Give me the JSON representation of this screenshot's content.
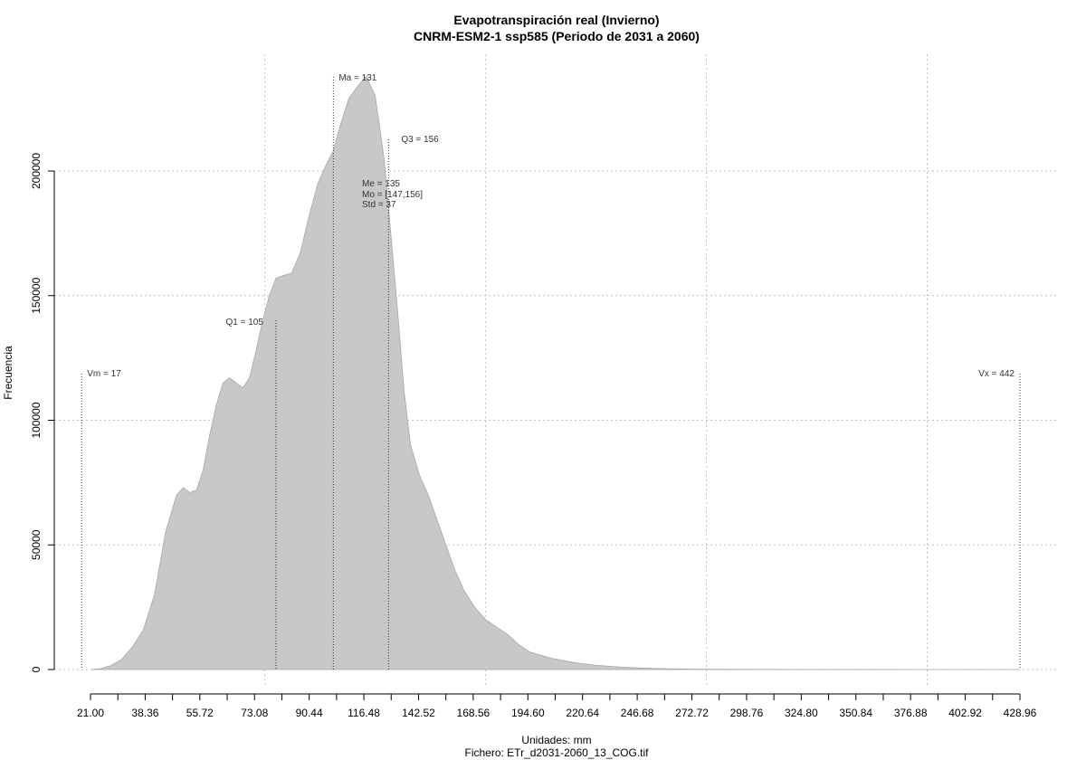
{
  "chart_data": {
    "type": "area",
    "title": "Evapotranspiración real (Invierno)",
    "subtitle": "CNRM-ESM2-1 ssp585 (Periodo de 2031 a 2060)",
    "xlabel": "Unidades: mm",
    "ylabel": "Frecuencia",
    "footer": "Fichero: ETr_d2031-2060_13_COG.tif",
    "xlim": [
      21.0,
      442.0
    ],
    "ylim": [
      0,
      240000
    ],
    "x_ticks": [
      "21.00",
      "38.36",
      "55.72",
      "73.08",
      "90.44",
      "116.48",
      "142.52",
      "168.56",
      "194.60",
      "220.64",
      "246.68",
      "272.72",
      "298.76",
      "324.80",
      "350.84",
      "376.88",
      "402.92",
      "428.96"
    ],
    "y_ticks": [
      "0",
      "50000",
      "100000",
      "150000",
      "200000"
    ],
    "grid": true,
    "fill_color": "#c8c8c8",
    "x": [
      21,
      25,
      30,
      35,
      40,
      45,
      50,
      55,
      60,
      63,
      66,
      69,
      72,
      75,
      78,
      81,
      84,
      87,
      90,
      93,
      96,
      99,
      102,
      105,
      108,
      112,
      116,
      120,
      124,
      128,
      131,
      134,
      138,
      142,
      146,
      150,
      154,
      157,
      160,
      163,
      166,
      170,
      174,
      178,
      182,
      186,
      190,
      195,
      200,
      205,
      210,
      215,
      220,
      230,
      240,
      250,
      260,
      270,
      280,
      290,
      300,
      320,
      340,
      360,
      380,
      400,
      420,
      442
    ],
    "y": [
      0,
      300,
      1500,
      4000,
      9000,
      16000,
      30000,
      55000,
      70000,
      73000,
      71000,
      72000,
      80000,
      94000,
      106000,
      115000,
      117000,
      115000,
      113000,
      117000,
      128000,
      140000,
      150000,
      157000,
      158000,
      159000,
      167000,
      182000,
      195000,
      203000,
      208000,
      218000,
      229000,
      234000,
      238000,
      230000,
      205000,
      175000,
      145000,
      112000,
      90000,
      78000,
      70000,
      60000,
      50000,
      40000,
      32000,
      25000,
      20000,
      17000,
      14000,
      10000,
      7000,
      4500,
      2800,
      1700,
      1000,
      600,
      350,
      200,
      120,
      80,
      50,
      30,
      20,
      10,
      5,
      0
    ],
    "annotations": {
      "vm": "Vm = 17",
      "q1": "Q1 = 105",
      "ma": "Ma = 131",
      "q3": "Q3 = 156",
      "me": "Me = 135",
      "mo": "Mo = [147,156]",
      "std": "Std = 37",
      "vx": "Vx = 442"
    }
  }
}
